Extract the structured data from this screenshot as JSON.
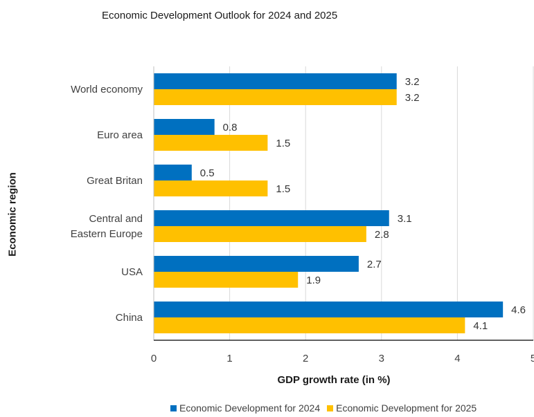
{
  "chart_data": {
    "type": "bar",
    "orientation": "horizontal",
    "title": "Economic Development Outlook for 2024 and 2025",
    "xlabel": "GDP growth rate (in %)",
    "ylabel": "Economic region",
    "categories": [
      [
        "World economy"
      ],
      [
        "Euro area"
      ],
      [
        "Great Britan"
      ],
      [
        "Central and",
        "Eastern Europe"
      ],
      [
        "USA"
      ],
      [
        "China"
      ]
    ],
    "series": [
      {
        "name": "Economic Development for 2024",
        "color": "#0070C0",
        "values": [
          3.2,
          0.8,
          0.5,
          3.1,
          2.7,
          4.6
        ]
      },
      {
        "name": "Economic Development for 2025",
        "color": "#FFC000",
        "values": [
          3.2,
          1.5,
          1.5,
          2.8,
          1.9,
          4.1
        ]
      }
    ],
    "xlim": [
      0,
      5
    ],
    "x_ticks": [
      "0",
      "1",
      "2",
      "3",
      "4",
      "5"
    ],
    "grid": "vertical",
    "legend_position": "bottom"
  }
}
